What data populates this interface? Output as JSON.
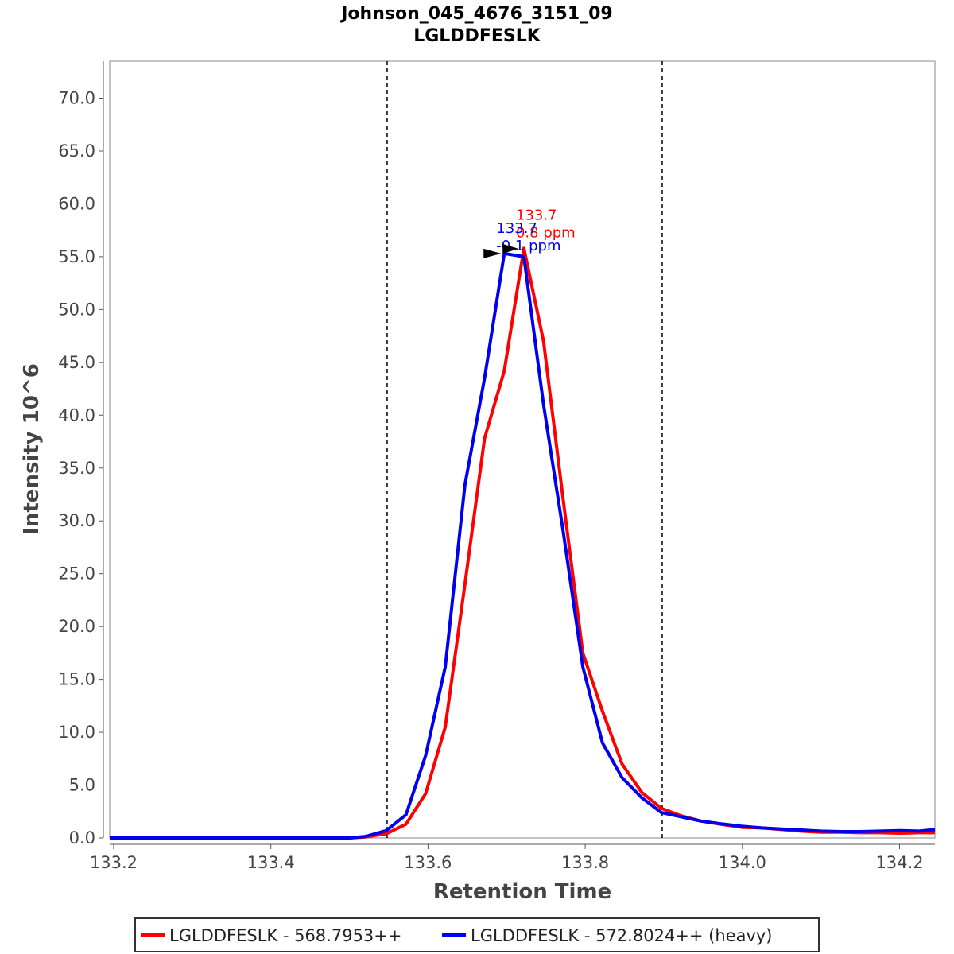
{
  "chart_data": {
    "type": "line",
    "title": "Johnson_045_4676_3151_09",
    "subtitle": "LGLDDFESLK",
    "xlabel": "Retention Time",
    "ylabel": "Intensity 10^6",
    "xlim": [
      133.195,
      134.245
    ],
    "ylim": [
      0,
      73.5
    ],
    "x_ticks": [
      133.2,
      133.4,
      133.6,
      133.8,
      134.0,
      134.2
    ],
    "x_tick_labels": [
      "133.2",
      "133.4",
      "133.6",
      "133.8",
      "134.0",
      "134.2"
    ],
    "y_ticks": [
      0,
      5,
      10,
      15,
      20,
      25,
      30,
      35,
      40,
      45,
      50,
      55,
      60,
      65,
      70
    ],
    "y_tick_labels": [
      "0.0",
      "5.0",
      "10.0",
      "15.0",
      "20.0",
      "25.0",
      "30.0",
      "35.0",
      "40.0",
      "45.0",
      "50.0",
      "55.0",
      "60.0",
      "65.0",
      "70.0"
    ],
    "grid": false,
    "legend_position": "bottom",
    "boundaries": [
      133.548,
      133.898
    ],
    "x": [
      133.195,
      133.25,
      133.3,
      133.35,
      133.4,
      133.45,
      133.5,
      133.521,
      133.547,
      133.572,
      133.597,
      133.622,
      133.647,
      133.672,
      133.697,
      133.722,
      133.747,
      133.772,
      133.797,
      133.822,
      133.847,
      133.872,
      133.897,
      133.922,
      133.947,
      133.972,
      134.0,
      134.025,
      134.05,
      134.075,
      134.1,
      134.125,
      134.15,
      134.175,
      134.2,
      134.225,
      134.245
    ],
    "series": [
      {
        "name": "LGLDDFESLK - 568.7953++",
        "color": "#ff0000",
        "values": [
          0,
          0,
          0,
          0,
          0,
          0,
          0,
          0.1,
          0.4,
          1.3,
          4.2,
          10.5,
          24.0,
          37.8,
          44.2,
          55.8,
          47.0,
          32.0,
          17.5,
          12.0,
          7.0,
          4.3,
          2.8,
          2.1,
          1.6,
          1.3,
          1.0,
          0.95,
          0.8,
          0.65,
          0.55,
          0.55,
          0.5,
          0.5,
          0.45,
          0.5,
          0.5
        ],
        "peak_label": [
          "133.7",
          "0.8 ppm"
        ],
        "peak_x": 133.722,
        "peak_y": 55.8
      },
      {
        "name": "LGLDDFESLK - 572.8024++ (heavy)",
        "color": "#0000ee",
        "values": [
          0,
          0,
          0,
          0,
          0,
          0,
          0,
          0.15,
          0.7,
          2.2,
          7.8,
          16.2,
          33.4,
          43.5,
          55.3,
          55.0,
          41.0,
          29.0,
          16.2,
          9.0,
          5.7,
          3.8,
          2.4,
          2.0,
          1.6,
          1.35,
          1.1,
          0.95,
          0.85,
          0.75,
          0.65,
          0.6,
          0.6,
          0.65,
          0.7,
          0.65,
          0.8
        ],
        "peak_label": [
          "133.7",
          "-0.1 ppm"
        ],
        "peak_x": 133.697,
        "peak_y": 55.3
      }
    ]
  }
}
